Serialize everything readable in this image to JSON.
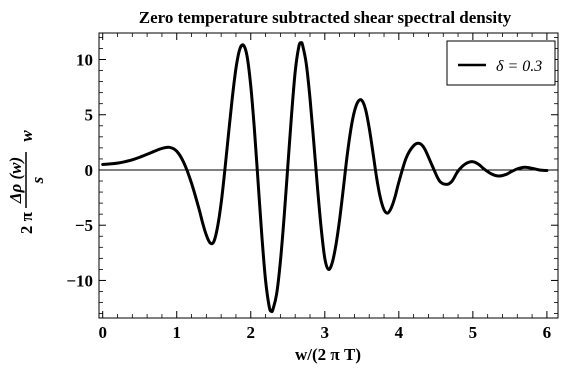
{
  "chart_data": {
    "type": "line",
    "title": "Zero temperature subtracted shear spectral density",
    "xlabel": "w/(2 π T)",
    "ylabel": {
      "prefix": "2 π",
      "numerator": "Δρ (w)",
      "denominator": "s",
      "suffix": "w"
    },
    "xlim": [
      -0.05,
      6.15
    ],
    "ylim": [
      -13.4,
      12.4
    ],
    "x_ticks": [
      0,
      1,
      2,
      3,
      4,
      5,
      6
    ],
    "x_tick_labels": [
      "0",
      "1",
      "2",
      "3",
      "4",
      "5",
      "6"
    ],
    "y_ticks": [
      -10,
      -5,
      0,
      5,
      10
    ],
    "y_tick_labels": [
      "−10",
      "−5",
      "0",
      "5",
      "10"
    ],
    "grid": false,
    "zero_line": true,
    "legend_position": "top-right",
    "series": [
      {
        "name": "δ = 0.3",
        "color": "#000000",
        "x": [
          0.0,
          0.1,
          0.2,
          0.3,
          0.4,
          0.5,
          0.6,
          0.7,
          0.8,
          0.9,
          1.0,
          1.1,
          1.2,
          1.3,
          1.35,
          1.4,
          1.45,
          1.5,
          1.55,
          1.6,
          1.65,
          1.7,
          1.75,
          1.8,
          1.85,
          1.9,
          1.95,
          2.0,
          2.05,
          2.1,
          2.15,
          2.2,
          2.25,
          2.28,
          2.3,
          2.35,
          2.4,
          2.45,
          2.5,
          2.55,
          2.6,
          2.65,
          2.68,
          2.7,
          2.75,
          2.8,
          2.85,
          2.9,
          2.95,
          3.0,
          3.05,
          3.1,
          3.15,
          3.2,
          3.25,
          3.3,
          3.35,
          3.4,
          3.45,
          3.5,
          3.55,
          3.6,
          3.65,
          3.7,
          3.75,
          3.8,
          3.85,
          3.9,
          3.95,
          4.0,
          4.1,
          4.2,
          4.28,
          4.35,
          4.45,
          4.55,
          4.65,
          4.72,
          4.8,
          4.9,
          5.0,
          5.08,
          5.15,
          5.25,
          5.35,
          5.45,
          5.52,
          5.6,
          5.7,
          5.8,
          5.9,
          6.0
        ],
        "y": [
          0.5,
          0.55,
          0.62,
          0.75,
          0.92,
          1.15,
          1.42,
          1.7,
          1.95,
          2.05,
          1.7,
          0.6,
          -1.2,
          -3.5,
          -4.8,
          -5.9,
          -6.6,
          -6.5,
          -5.2,
          -3.0,
          0.0,
          3.3,
          6.5,
          9.2,
          10.9,
          11.3,
          10.3,
          7.6,
          3.6,
          -1.2,
          -6.0,
          -10.0,
          -12.4,
          -12.8,
          -12.6,
          -11.2,
          -8.3,
          -4.3,
          0.3,
          4.9,
          8.9,
          11.2,
          11.5,
          11.3,
          9.6,
          6.5,
          2.6,
          -1.5,
          -5.2,
          -8.0,
          -9.0,
          -8.4,
          -6.8,
          -4.5,
          -1.7,
          1.2,
          3.6,
          5.3,
          6.2,
          6.3,
          5.5,
          3.8,
          1.6,
          -0.7,
          -2.5,
          -3.6,
          -3.9,
          -3.4,
          -2.4,
          -1.1,
          1.1,
          2.2,
          2.4,
          1.9,
          0.4,
          -1.0,
          -1.3,
          -1.0,
          -0.1,
          0.55,
          0.75,
          0.5,
          0.1,
          -0.35,
          -0.55,
          -0.4,
          -0.15,
          0.1,
          0.25,
          0.15,
          0.0,
          -0.05
        ]
      }
    ]
  }
}
